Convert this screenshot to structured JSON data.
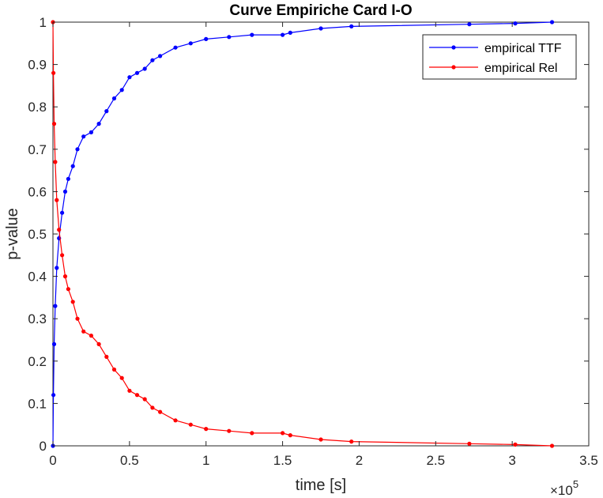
{
  "chart_data": {
    "type": "line",
    "title": "Curve Empiriche Card I-O",
    "xlabel": "time [s]",
    "ylabel": "p-value",
    "x_multiplier_label": "×10",
    "x_multiplier_exp": "5",
    "x_tick_labels": [
      "0",
      "0.5",
      "1",
      "1.5",
      "2",
      "2.5",
      "3",
      "3.5"
    ],
    "y_tick_labels": [
      "0",
      "0.1",
      "0.2",
      "0.3",
      "0.4",
      "0.5",
      "0.6",
      "0.7",
      "0.8",
      "0.9",
      "1"
    ],
    "xlim": [
      0,
      350000
    ],
    "ylim": [
      0,
      1
    ],
    "grid": false,
    "legend_position": "top-right",
    "series": [
      {
        "name": "empirical TTF",
        "color": "#0000ff",
        "x": [
          0,
          300,
          800,
          1500,
          2500,
          4000,
          6000,
          8000,
          10000,
          13000,
          16000,
          20000,
          25000,
          30000,
          35000,
          40000,
          45000,
          50000,
          55000,
          60000,
          65000,
          70000,
          80000,
          90000,
          100000,
          115000,
          130000,
          150000,
          155000,
          175000,
          195000,
          272000,
          302000,
          326000
        ],
        "y": [
          0,
          0.12,
          0.24,
          0.33,
          0.42,
          0.49,
          0.55,
          0.6,
          0.63,
          0.66,
          0.7,
          0.73,
          0.74,
          0.76,
          0.79,
          0.82,
          0.84,
          0.87,
          0.88,
          0.89,
          0.91,
          0.92,
          0.94,
          0.95,
          0.96,
          0.965,
          0.97,
          0.97,
          0.975,
          0.985,
          0.99,
          0.995,
          0.997,
          1.0
        ]
      },
      {
        "name": "empirical Rel",
        "color": "#ff0000",
        "x": [
          0,
          300,
          800,
          1500,
          2500,
          4000,
          6000,
          8000,
          10000,
          13000,
          16000,
          20000,
          25000,
          30000,
          35000,
          40000,
          45000,
          50000,
          55000,
          60000,
          65000,
          70000,
          80000,
          90000,
          100000,
          115000,
          130000,
          150000,
          155000,
          175000,
          195000,
          272000,
          302000,
          326000
        ],
        "y": [
          1.0,
          0.88,
          0.76,
          0.67,
          0.58,
          0.51,
          0.45,
          0.4,
          0.37,
          0.34,
          0.3,
          0.27,
          0.26,
          0.24,
          0.21,
          0.18,
          0.16,
          0.13,
          0.12,
          0.11,
          0.09,
          0.08,
          0.06,
          0.05,
          0.04,
          0.035,
          0.03,
          0.03,
          0.025,
          0.015,
          0.01,
          0.005,
          0.003,
          0.0
        ]
      }
    ]
  }
}
